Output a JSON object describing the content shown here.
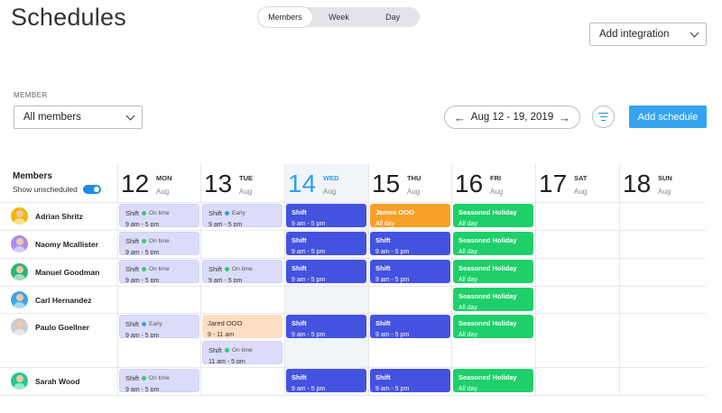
{
  "header": {
    "title": "Schedules",
    "view_tabs": [
      {
        "label": "Members",
        "active": true
      },
      {
        "label": "Week",
        "active": false
      },
      {
        "label": "Day",
        "active": false
      }
    ],
    "integration_select": "Add integration"
  },
  "filters": {
    "member_label": "MEMBER",
    "member_select": "All members",
    "date_range": "Aug 12 - 19, 2019",
    "prev_icon": "arrow-left-icon",
    "next_icon": "arrow-right-icon",
    "filter_icon": "filter-lines-icon",
    "add_schedule_label": "Add schedule"
  },
  "colors": {
    "accent": "#35a3ef",
    "shift_blue": "#4452e0",
    "holiday_green": "#1fcf6a",
    "ooo_orange": "#f7a128",
    "shift_lavender": "#dcdcfa",
    "ooo_peach": "#fddec2",
    "on_time": "#2ecc71",
    "early": "#2e9ef0"
  },
  "grid": {
    "members_heading": "Members",
    "show_unscheduled_label": "Show unscheduled",
    "days": [
      {
        "num": "12",
        "name": "MON",
        "month": "Aug",
        "today": false
      },
      {
        "num": "13",
        "name": "TUE",
        "month": "Aug",
        "today": false
      },
      {
        "num": "14",
        "name": "WED",
        "month": "Aug",
        "today": true
      },
      {
        "num": "15",
        "name": "THU",
        "month": "Aug",
        "today": false
      },
      {
        "num": "16",
        "name": "FRI",
        "month": "Aug",
        "today": false
      },
      {
        "num": "17",
        "name": "SAT",
        "month": "Aug",
        "today": false
      },
      {
        "num": "18",
        "name": "SUN",
        "month": "Aug",
        "today": false
      }
    ],
    "members": [
      {
        "name": "Adrian Shritz",
        "avatar_color": "#f2b705"
      },
      {
        "name": "Naomy Mcallister",
        "avatar_color": "#a78bfa"
      },
      {
        "name": "Manuel Goodman",
        "avatar_color": "#2bb673"
      },
      {
        "name": "Carl Hernandez",
        "avatar_color": "#3aa7e8"
      },
      {
        "name": "Paulo Goellner",
        "avatar_color": "#c8ccd6"
      },
      {
        "name": "Sarah Wood",
        "avatar_color": "#20c997"
      }
    ],
    "blocks": [
      {
        "row": 0,
        "day": 0,
        "sub": 0,
        "kind": "lav",
        "title": "Shift",
        "status": "On time",
        "status_color": "#2ecc71",
        "sub_text": "9 am - 5 pm"
      },
      {
        "row": 0,
        "day": 1,
        "sub": 0,
        "kind": "lav",
        "title": "Shift",
        "status": "Early",
        "status_color": "#2e9ef0",
        "sub_text": "9 am - 5 pm"
      },
      {
        "row": 0,
        "day": 2,
        "sub": 0,
        "kind": "blue",
        "title": "Shift",
        "status": "",
        "status_color": "",
        "sub_text": "9 am - 5 pm"
      },
      {
        "row": 0,
        "day": 3,
        "sub": 0,
        "kind": "orange",
        "title": "James OOO",
        "status": "",
        "status_color": "",
        "sub_text": "All day"
      },
      {
        "row": 0,
        "day": 4,
        "sub": 0,
        "kind": "green",
        "title": "Seasoned Holiday",
        "status": "",
        "status_color": "",
        "sub_text": "All day"
      },
      {
        "row": 1,
        "day": 0,
        "sub": 0,
        "kind": "lav",
        "title": "Shift",
        "status": "On time",
        "status_color": "#2ecc71",
        "sub_text": "9 am - 5 pm"
      },
      {
        "row": 1,
        "day": 2,
        "sub": 0,
        "kind": "blue",
        "title": "Shift",
        "status": "",
        "status_color": "",
        "sub_text": "9 am - 5 pm"
      },
      {
        "row": 1,
        "day": 3,
        "sub": 0,
        "kind": "blue",
        "title": "Shift",
        "status": "",
        "status_color": "",
        "sub_text": "9 am - 5 pm"
      },
      {
        "row": 1,
        "day": 4,
        "sub": 0,
        "kind": "green",
        "title": "Seasoned Holiday",
        "status": "",
        "status_color": "",
        "sub_text": "All day"
      },
      {
        "row": 2,
        "day": 0,
        "sub": 0,
        "kind": "lav",
        "title": "Shift",
        "status": "On time",
        "status_color": "#2ecc71",
        "sub_text": "9 am - 5 pm"
      },
      {
        "row": 2,
        "day": 1,
        "sub": 0,
        "kind": "lav",
        "title": "Shift",
        "status": "On time",
        "status_color": "#2ecc71",
        "sub_text": "9 am - 5 pm"
      },
      {
        "row": 2,
        "day": 2,
        "sub": 0,
        "kind": "blue",
        "title": "Shift",
        "status": "",
        "status_color": "",
        "sub_text": "9 am - 5 pm"
      },
      {
        "row": 2,
        "day": 3,
        "sub": 0,
        "kind": "blue",
        "title": "Shift",
        "status": "",
        "status_color": "",
        "sub_text": "9 am - 5 pm"
      },
      {
        "row": 2,
        "day": 4,
        "sub": 0,
        "kind": "green",
        "title": "Seasoned Holiday",
        "status": "",
        "status_color": "",
        "sub_text": "All day"
      },
      {
        "row": 3,
        "day": 4,
        "sub": 0,
        "kind": "green",
        "title": "Seasoned Holiday",
        "status": "",
        "status_color": "",
        "sub_text": "All day"
      },
      {
        "row": 4,
        "day": 0,
        "sub": 0,
        "kind": "lav",
        "title": "Shift",
        "status": "Early",
        "status_color": "#2e9ef0",
        "sub_text": "9 am - 5 pm"
      },
      {
        "row": 4,
        "day": 1,
        "sub": 0,
        "kind": "peach",
        "title": "Jared OOO",
        "status": "",
        "status_color": "",
        "sub_text": "9 - 11 am"
      },
      {
        "row": 4,
        "day": 1,
        "sub": 1,
        "kind": "lav",
        "title": "Shift",
        "status": "On time",
        "status_color": "#2ecc71",
        "sub_text": "11 am - 5 pm"
      },
      {
        "row": 4,
        "day": 2,
        "sub": 0,
        "kind": "blue",
        "title": "Shift",
        "status": "",
        "status_color": "",
        "sub_text": "9 am - 5 pm"
      },
      {
        "row": 4,
        "day": 3,
        "sub": 0,
        "kind": "blue",
        "title": "Shift",
        "status": "",
        "status_color": "",
        "sub_text": "9 am - 5 pm"
      },
      {
        "row": 4,
        "day": 4,
        "sub": 0,
        "kind": "green",
        "title": "Seasoned Holiday",
        "status": "",
        "status_color": "",
        "sub_text": "All day"
      },
      {
        "row": 5,
        "day": 0,
        "sub": 0,
        "kind": "lav",
        "title": "Shift",
        "status": "On time",
        "status_color": "#2ecc71",
        "sub_text": "9 am - 5 pm"
      },
      {
        "row": 5,
        "day": 2,
        "sub": 0,
        "kind": "blue",
        "title": "Shift",
        "status": "",
        "status_color": "",
        "sub_text": "9 am - 5 pm"
      },
      {
        "row": 5,
        "day": 3,
        "sub": 0,
        "kind": "blue",
        "title": "Shift",
        "status": "",
        "status_color": "",
        "sub_text": "9 am - 5 pm"
      },
      {
        "row": 5,
        "day": 4,
        "sub": 0,
        "kind": "green",
        "title": "Seasoned Holiday",
        "status": "",
        "status_color": "",
        "sub_text": "All day"
      }
    ]
  }
}
